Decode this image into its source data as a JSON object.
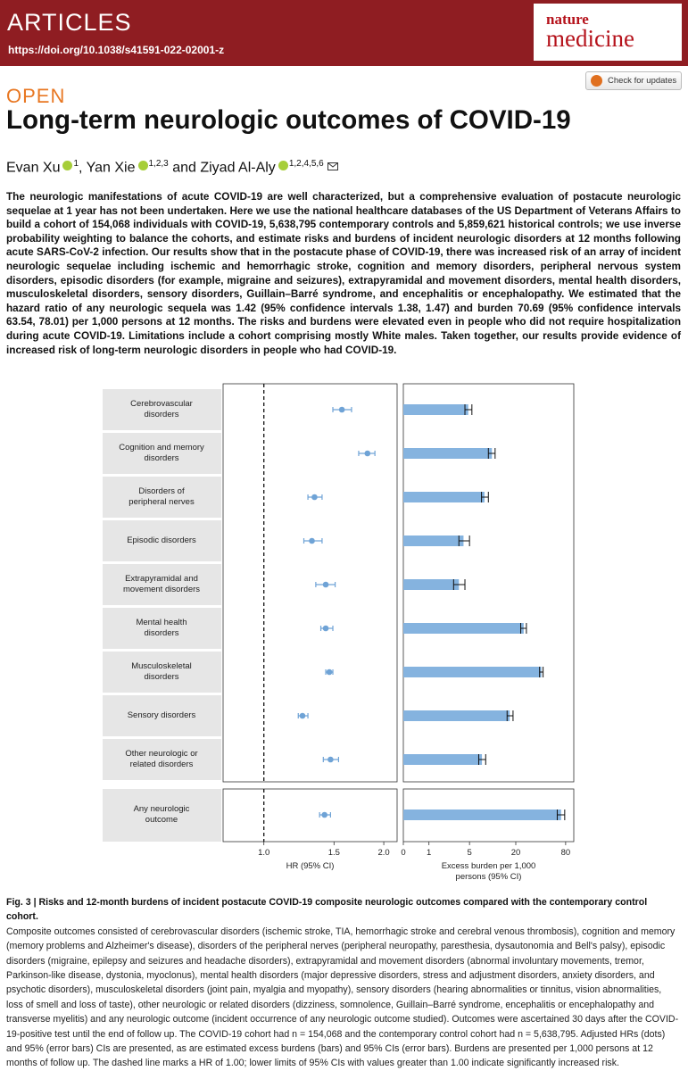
{
  "header": {
    "section": "ARTICLES",
    "doi": "https://doi.org/10.1038/s41591-022-02001-z",
    "journal_top": "nature",
    "journal_bottom": "medicine",
    "check_updates": "Check for updates"
  },
  "open_label": "OPEN",
  "title": "Long-term neurologic outcomes of COVID-19",
  "authors": [
    "Evan Xu",
    "1",
    ", Yan Xie",
    "1,2,3",
    " and Ziyad Al-Aly",
    "1,2,4,5,6"
  ],
  "abstract": "The neurologic manifestations of acute COVID-19 are well characterized, but a comprehensive evaluation of postacute neurologic sequelae at 1 year has not been undertaken. Here we use the national healthcare databases of the US Department of Veterans Affairs to build a cohort of 154,068 individuals with COVID-19, 5,638,795 contemporary controls and 5,859,621 historical controls; we use inverse probability weighting to balance the cohorts, and estimate risks and burdens of incident neurologic disorders at 12 months following acute SARS-CoV-2 infection. Our results show that in the postacute phase of COVID-19, there was increased risk of an array of incident neurologic sequelae including ischemic and hemorrhagic stroke, cognition and memory disorders, peripheral nervous system disorders, episodic disorders (for example, migraine and seizures), extrapyramidal and movement disorders, mental health disorders, musculoskeletal disorders, sensory disorders, Guillain–Barré syndrome, and encephalitis or encephalopathy. We estimated that the hazard ratio of any neurologic sequela was 1.42 (95% confidence intervals 1.38, 1.47) and burden 70.69 (95% confidence intervals 63.54, 78.01) per 1,000 persons at 12 months. The risks and burdens were elevated even in people who did not require hospitalization during acute COVID-19. Limitations include a cohort comprising mostly White males. Taken together, our results provide evidence of increased risk of long-term neurologic disorders in people who had COVID-19.",
  "chart_data": [
    {
      "type": "forest",
      "x_label": "HR (95% CI)",
      "xscale": "log",
      "categories": [
        "Cerebrovascular disorders",
        "Cognition and memory disorders",
        "Disorders of peripheral nerves",
        "Episodic disorders",
        "Extrapyramidal and movement disorders",
        "Mental health disorders",
        "Musculoskeletal disorders",
        "Sensory disorders",
        "Other neurologic or related disorders",
        "Any neurologic outcome"
      ],
      "values": [
        1.57,
        1.82,
        1.34,
        1.32,
        1.43,
        1.43,
        1.46,
        1.25,
        1.47,
        1.42
      ],
      "ci_low": [
        1.49,
        1.73,
        1.29,
        1.26,
        1.35,
        1.39,
        1.43,
        1.22,
        1.41,
        1.38
      ],
      "ci_high": [
        1.66,
        1.9,
        1.4,
        1.4,
        1.51,
        1.49,
        1.49,
        1.29,
        1.54,
        1.47
      ],
      "color": "#6fa3d6",
      "ref_line": 1,
      "xlim": [
        0.79,
        2.16
      ],
      "xticks": [
        {
          "value": 1,
          "label": "1.0"
        },
        {
          "value": 1.5,
          "label": "1.5"
        },
        {
          "value": 2,
          "label": "2.0"
        }
      ]
    },
    {
      "type": "bar",
      "x_label": "Excess burden per 1,000 persons (95% CI)",
      "xscale": "symlog",
      "values": [
        4.8,
        10,
        8,
        4.1,
        3.5,
        25,
        41,
        16.8,
        7.4,
        70.69
      ],
      "ci_low": [
        4.3,
        9,
        7.3,
        3.5,
        2.9,
        23,
        39,
        15.6,
        6.7,
        63.54
      ],
      "ci_high": [
        5.4,
        11,
        9,
        5,
        4.3,
        27,
        43,
        18.5,
        8.3,
        78.01
      ],
      "color": "#85b3df",
      "xlim": [
        0,
        100
      ],
      "xticks": [
        0,
        1,
        5,
        20,
        80
      ]
    }
  ],
  "caption": {
    "label": "Fig. 3 | Risks and 12-month burdens of incident postacute COVID-19 composite neurologic outcomes compared with the contemporary control cohort.",
    "text": "Composite outcomes consisted of cerebrovascular disorders (ischemic stroke, TIA, hemorrhagic stroke and cerebral venous thrombosis), cognition and memory (memory problems and Alzheimer's disease), disorders of the peripheral nerves (peripheral neuropathy, paresthesia, dysautonomia and Bell's palsy), episodic disorders (migraine, epilepsy and seizures and headache disorders), extrapyramidal and movement disorders (abnormal involuntary movements, tremor, Parkinson-like disease, dystonia, myoclonus), mental health disorders (major depressive disorders, stress and adjustment disorders, anxiety disorders, and psychotic disorders), musculoskeletal disorders (joint pain, myalgia and myopathy), sensory disorders (hearing abnormalities or tinnitus, vision abnormalities, loss of smell and loss of taste), other neurologic or related disorders (dizziness, somnolence, Guillain–Barré syndrome, encephalitis or encephalopathy and transverse myelitis) and any neurologic outcome (incident occurrence of any neurologic outcome studied). Outcomes were ascertained 30 days after the COVID-19-positive test until the end of follow up. The COVID-19 cohort had n = 154,068 and the contemporary control cohort had n = 5,638,795. Adjusted HRs (dots) and 95% (error bars) CIs are presented, as are estimated excess burdens (bars) and 95% CIs (error bars). Burdens are presented per 1,000 persons at 12 months of follow up. The dashed line marks a HR of 1.00; lower limits of 95% CIs with values greater than 1.00 indicate significantly increased risk."
  }
}
